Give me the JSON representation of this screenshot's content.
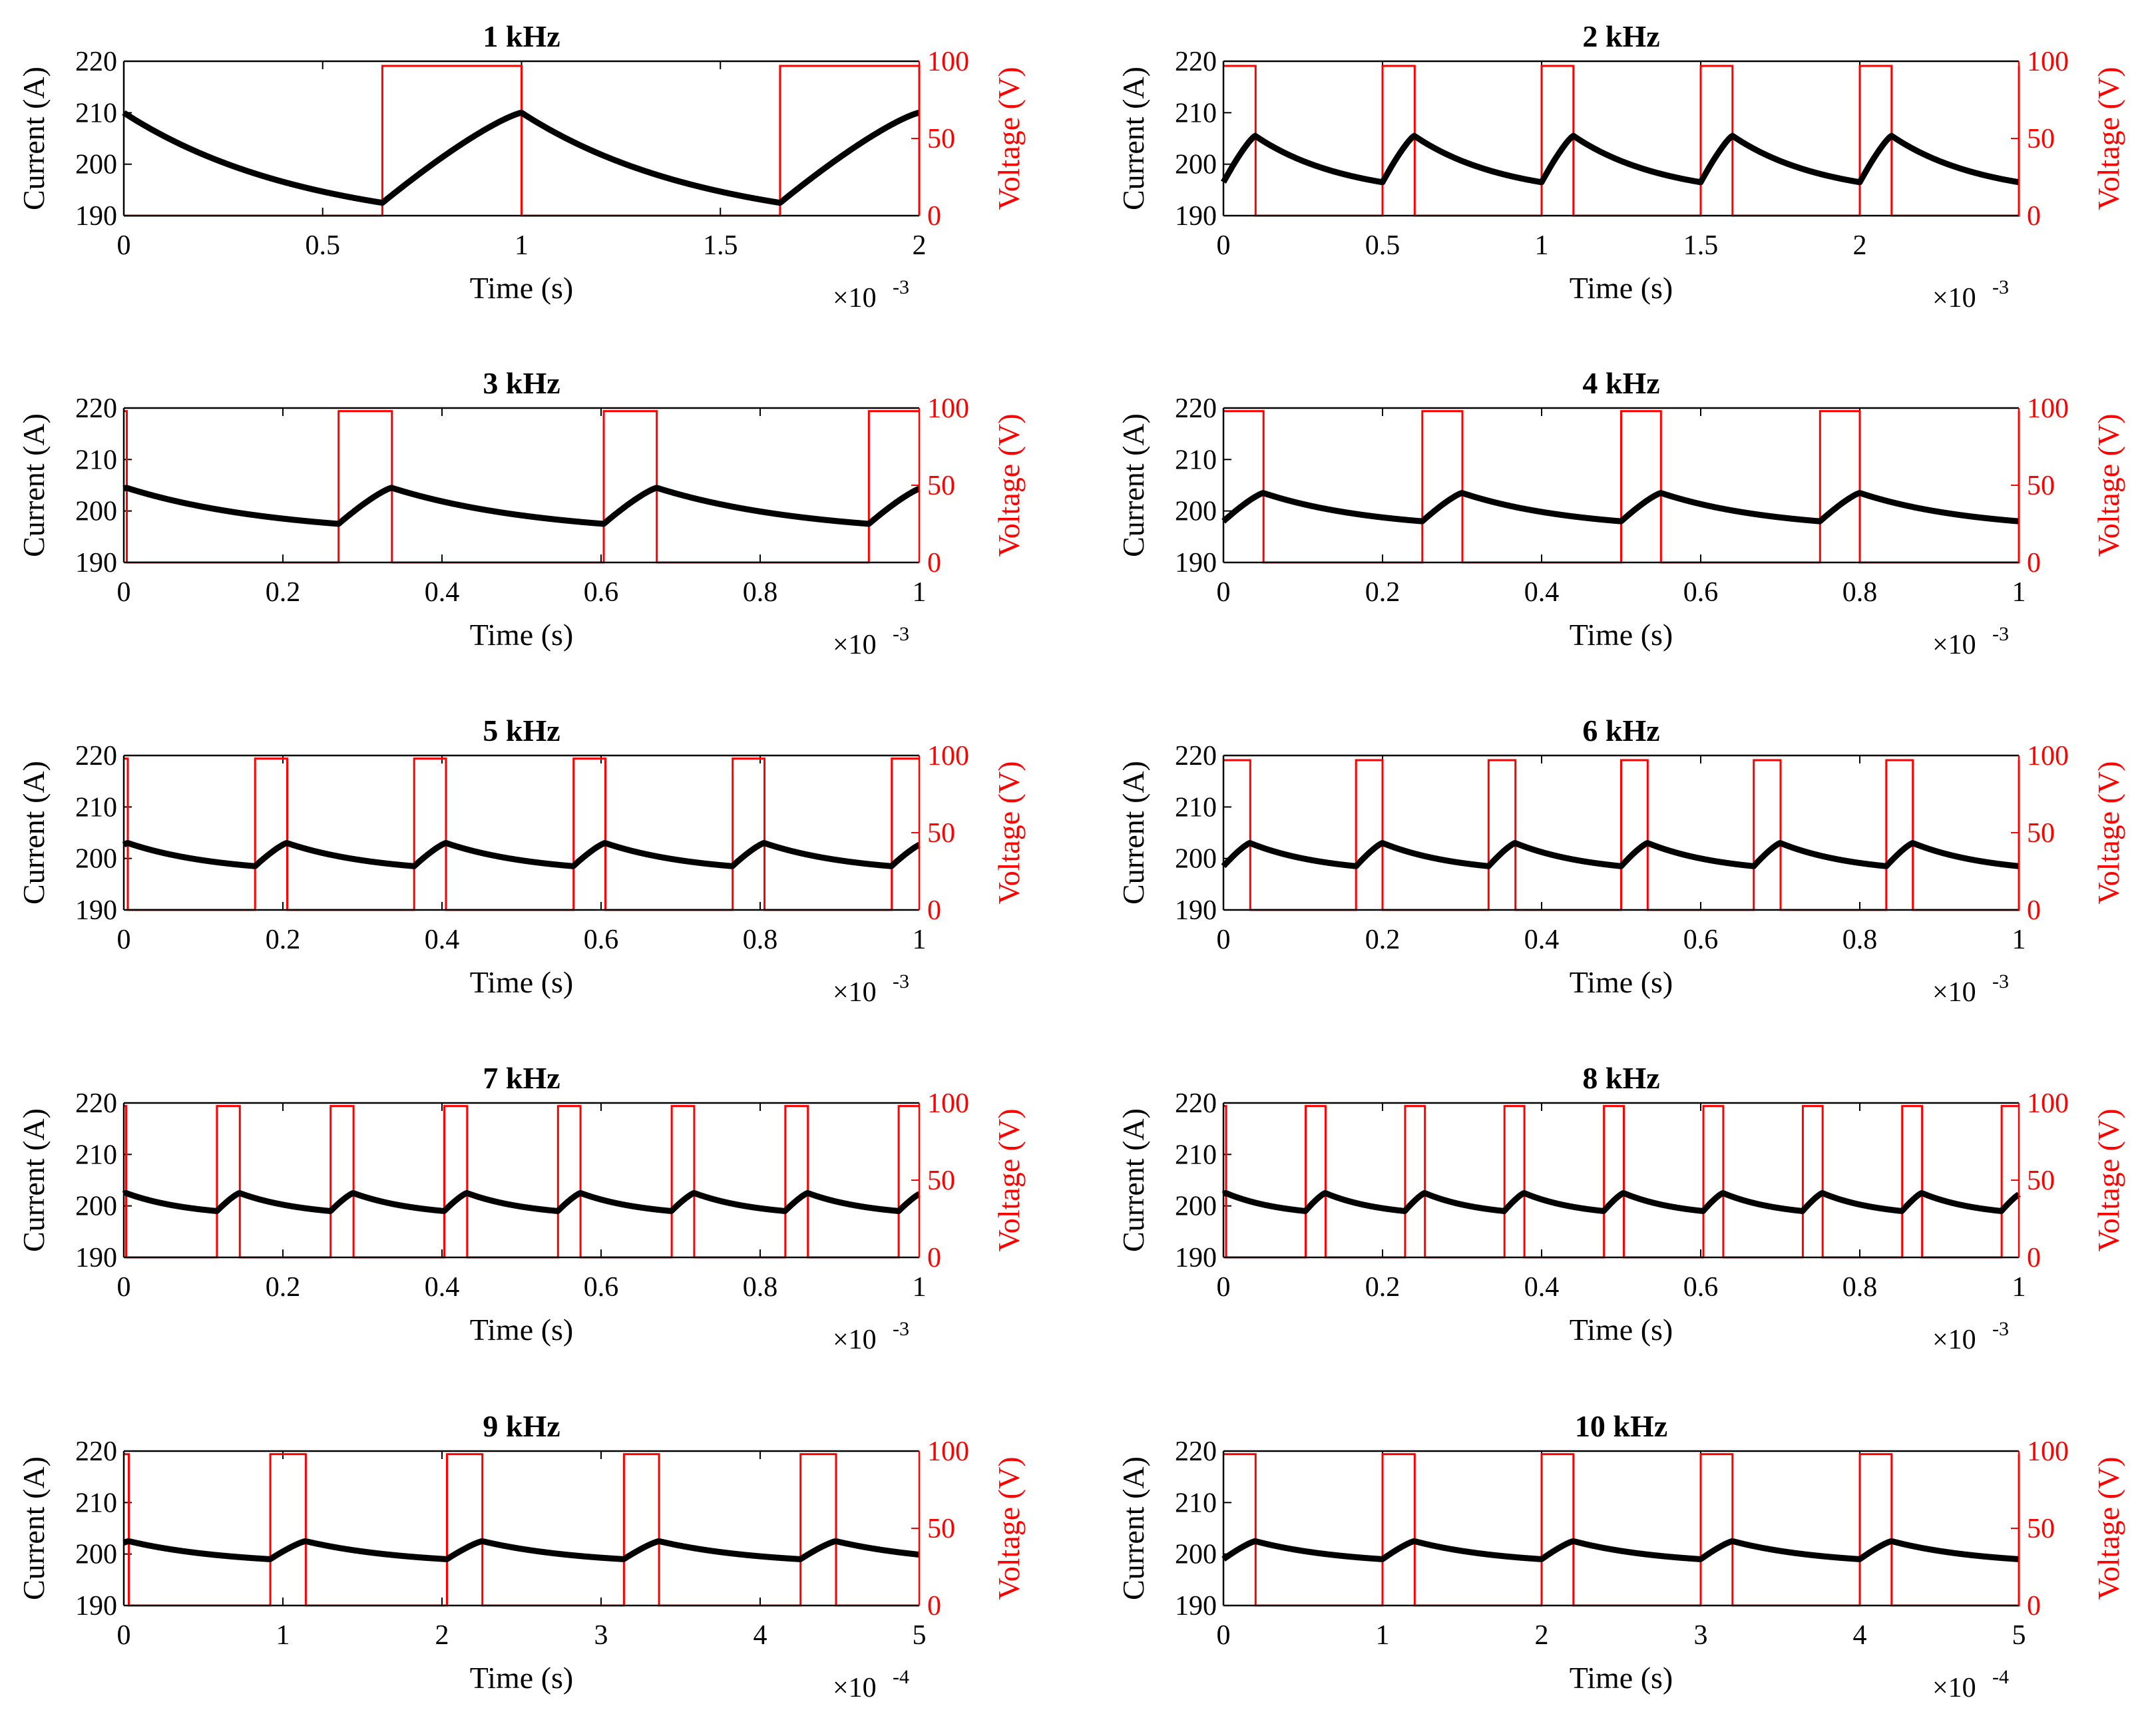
{
  "chart_data": [
    {
      "type": "line",
      "title": "1 kHz",
      "frequency_khz": 1,
      "duty": 0.35,
      "xlabel": "Time (s)",
      "ylabel": "Current (A)",
      "y2label": "Voltage (V)",
      "xlim": [
        0,
        2
      ],
      "x_multiplier": "×10",
      "x_exponent": "-3",
      "xticks": [
        0,
        0.5,
        1,
        1.5,
        2
      ],
      "xtick_labels": [
        "0",
        "0.5",
        "1",
        "1.5",
        "2"
      ],
      "ylim": [
        190,
        220
      ],
      "yticks": [
        190,
        200,
        210,
        220
      ],
      "y2lim": [
        0,
        100
      ],
      "y2ticks": [
        0,
        50,
        100
      ],
      "series": [
        {
          "name": "Current",
          "color": "#000000",
          "i_max": 210,
          "i_min": 192.5
        },
        {
          "name": "Voltage",
          "color": "#ff0000",
          "v_on": 97,
          "v_off": 0
        }
      ]
    },
    {
      "type": "line",
      "title": "2 kHz",
      "frequency_khz": 2,
      "duty": 0.2,
      "xlabel": "Time (s)",
      "ylabel": "Current (A)",
      "y2label": "Voltage (V)",
      "xlim": [
        0,
        2.5
      ],
      "x_multiplier": "×10",
      "x_exponent": "-3",
      "xticks": [
        0,
        0.5,
        1,
        1.5,
        2
      ],
      "xtick_labels": [
        "0",
        "0.5",
        "1",
        "1.5",
        "2"
      ],
      "ylim": [
        190,
        220
      ],
      "yticks": [
        190,
        200,
        210,
        220
      ],
      "y2lim": [
        0,
        100
      ],
      "y2ticks": [
        0,
        50,
        100
      ],
      "series": [
        {
          "name": "Current",
          "color": "#000000",
          "i_max": 205.5,
          "i_min": 196.5
        },
        {
          "name": "Voltage",
          "color": "#ff0000",
          "v_on": 97,
          "v_off": 0
        }
      ]
    },
    {
      "type": "line",
      "title": "3 kHz",
      "frequency_khz": 3,
      "duty": 0.2,
      "xlabel": "Time (s)",
      "ylabel": "Current (A)",
      "y2label": "Voltage (V)",
      "xlim": [
        0,
        1
      ],
      "x_multiplier": "×10",
      "x_exponent": "-3",
      "xticks": [
        0,
        0.2,
        0.4,
        0.6,
        0.8,
        1
      ],
      "xtick_labels": [
        "0",
        "0.2",
        "0.4",
        "0.6",
        "0.8",
        "1"
      ],
      "ylim": [
        190,
        220
      ],
      "yticks": [
        190,
        200,
        210,
        220
      ],
      "y2lim": [
        0,
        100
      ],
      "y2ticks": [
        0,
        50,
        100
      ],
      "series": [
        {
          "name": "Current",
          "color": "#000000",
          "i_max": 204.5,
          "i_min": 197.5
        },
        {
          "name": "Voltage",
          "color": "#ff0000",
          "v_on": 98,
          "v_off": 0
        }
      ]
    },
    {
      "type": "line",
      "title": "4 kHz",
      "frequency_khz": 4,
      "duty": 0.2,
      "xlabel": "Time (s)",
      "ylabel": "Current (A)",
      "y2label": "Voltage (V)",
      "xlim": [
        0,
        1
      ],
      "x_multiplier": "×10",
      "x_exponent": "-3",
      "xticks": [
        0,
        0.2,
        0.4,
        0.6,
        0.8,
        1
      ],
      "xtick_labels": [
        "0",
        "0.2",
        "0.4",
        "0.6",
        "0.8",
        "1"
      ],
      "ylim": [
        190,
        220
      ],
      "yticks": [
        190,
        200,
        210,
        220
      ],
      "y2lim": [
        0,
        100
      ],
      "y2ticks": [
        0,
        50,
        100
      ],
      "series": [
        {
          "name": "Current",
          "color": "#000000",
          "i_max": 203.5,
          "i_min": 198
        },
        {
          "name": "Voltage",
          "color": "#ff0000",
          "v_on": 98,
          "v_off": 0
        }
      ]
    },
    {
      "type": "line",
      "title": "5 kHz",
      "frequency_khz": 5,
      "duty": 0.2,
      "xlabel": "Time (s)",
      "ylabel": "Current (A)",
      "y2label": "Voltage (V)",
      "xlim": [
        0,
        1
      ],
      "x_multiplier": "×10",
      "x_exponent": "-3",
      "xticks": [
        0,
        0.2,
        0.4,
        0.6,
        0.8,
        1
      ],
      "xtick_labels": [
        "0",
        "0.2",
        "0.4",
        "0.6",
        "0.8",
        "1"
      ],
      "ylim": [
        190,
        220
      ],
      "yticks": [
        190,
        200,
        210,
        220
      ],
      "y2lim": [
        0,
        100
      ],
      "y2ticks": [
        0,
        50,
        100
      ],
      "series": [
        {
          "name": "Current",
          "color": "#000000",
          "i_max": 203,
          "i_min": 198.5
        },
        {
          "name": "Voltage",
          "color": "#ff0000",
          "v_on": 98,
          "v_off": 0
        }
      ]
    },
    {
      "type": "line",
      "title": "6 kHz",
      "frequency_khz": 6,
      "duty": 0.2,
      "xlabel": "Time (s)",
      "ylabel": "Current (A)",
      "y2label": "Voltage (V)",
      "xlim": [
        0,
        1
      ],
      "x_multiplier": "×10",
      "x_exponent": "-3",
      "xticks": [
        0,
        0.2,
        0.4,
        0.6,
        0.8,
        1
      ],
      "xtick_labels": [
        "0",
        "0.2",
        "0.4",
        "0.6",
        "0.8",
        "1"
      ],
      "ylim": [
        190,
        220
      ],
      "yticks": [
        190,
        200,
        210,
        220
      ],
      "y2lim": [
        0,
        100
      ],
      "y2ticks": [
        0,
        50,
        100
      ],
      "series": [
        {
          "name": "Current",
          "color": "#000000",
          "i_max": 203,
          "i_min": 198.5
        },
        {
          "name": "Voltage",
          "color": "#ff0000",
          "v_on": 97,
          "v_off": 0
        }
      ]
    },
    {
      "type": "line",
      "title": "7 kHz",
      "frequency_khz": 7,
      "duty": 0.2,
      "xlabel": "Time (s)",
      "ylabel": "Current (A)",
      "y2label": "Voltage (V)",
      "xlim": [
        0,
        1
      ],
      "x_multiplier": "×10",
      "x_exponent": "-3",
      "xticks": [
        0,
        0.2,
        0.4,
        0.6,
        0.8,
        1
      ],
      "xtick_labels": [
        "0",
        "0.2",
        "0.4",
        "0.6",
        "0.8",
        "1"
      ],
      "ylim": [
        190,
        220
      ],
      "yticks": [
        190,
        200,
        210,
        220
      ],
      "y2lim": [
        0,
        100
      ],
      "y2ticks": [
        0,
        50,
        100
      ],
      "series": [
        {
          "name": "Current",
          "color": "#000000",
          "i_max": 202.5,
          "i_min": 199
        },
        {
          "name": "Voltage",
          "color": "#ff0000",
          "v_on": 98,
          "v_off": 0
        }
      ]
    },
    {
      "type": "line",
      "title": "8 kHz",
      "frequency_khz": 8,
      "duty": 0.2,
      "xlabel": "Time (s)",
      "ylabel": "Current (A)",
      "y2label": "Voltage (V)",
      "xlim": [
        0,
        1
      ],
      "x_multiplier": "×10",
      "x_exponent": "-3",
      "xticks": [
        0,
        0.2,
        0.4,
        0.6,
        0.8,
        1
      ],
      "xtick_labels": [
        "0",
        "0.2",
        "0.4",
        "0.6",
        "0.8",
        "1"
      ],
      "ylim": [
        190,
        220
      ],
      "yticks": [
        190,
        200,
        210,
        220
      ],
      "y2lim": [
        0,
        100
      ],
      "y2ticks": [
        0,
        50,
        100
      ],
      "series": [
        {
          "name": "Current",
          "color": "#000000",
          "i_max": 202.5,
          "i_min": 199
        },
        {
          "name": "Voltage",
          "color": "#ff0000",
          "v_on": 98,
          "v_off": 0
        }
      ]
    },
    {
      "type": "line",
      "title": "9 kHz",
      "frequency_khz": 9,
      "duty": 0.2,
      "xlabel": "Time (s)",
      "ylabel": "Current (A)",
      "y2label": "Voltage (V)",
      "xlim": [
        0,
        5
      ],
      "x_multiplier": "×10",
      "x_exponent": "-4",
      "xticks": [
        0,
        1,
        2,
        3,
        4,
        5
      ],
      "xtick_labels": [
        "0",
        "1",
        "2",
        "3",
        "4",
        "5"
      ],
      "ylim": [
        190,
        220
      ],
      "yticks": [
        190,
        200,
        210,
        220
      ],
      "y2lim": [
        0,
        100
      ],
      "y2ticks": [
        0,
        50,
        100
      ],
      "series": [
        {
          "name": "Current",
          "color": "#000000",
          "i_max": 202.5,
          "i_min": 199
        },
        {
          "name": "Voltage",
          "color": "#ff0000",
          "v_on": 98,
          "v_off": 0
        }
      ]
    },
    {
      "type": "line",
      "title": "10 kHz",
      "frequency_khz": 10,
      "duty": 0.2,
      "xlabel": "Time (s)",
      "ylabel": "Current (A)",
      "y2label": "Voltage (V)",
      "xlim": [
        0,
        5
      ],
      "x_multiplier": "×10",
      "x_exponent": "-4",
      "xticks": [
        0,
        1,
        2,
        3,
        4,
        5
      ],
      "xtick_labels": [
        "0",
        "1",
        "2",
        "3",
        "4",
        "5"
      ],
      "ylim": [
        190,
        220
      ],
      "yticks": [
        190,
        200,
        210,
        220
      ],
      "y2lim": [
        0,
        100
      ],
      "y2ticks": [
        0,
        50,
        100
      ],
      "series": [
        {
          "name": "Current",
          "color": "#000000",
          "i_max": 202.5,
          "i_min": 199
        },
        {
          "name": "Voltage",
          "color": "#ff0000",
          "v_on": 98,
          "v_off": 0
        }
      ]
    }
  ]
}
